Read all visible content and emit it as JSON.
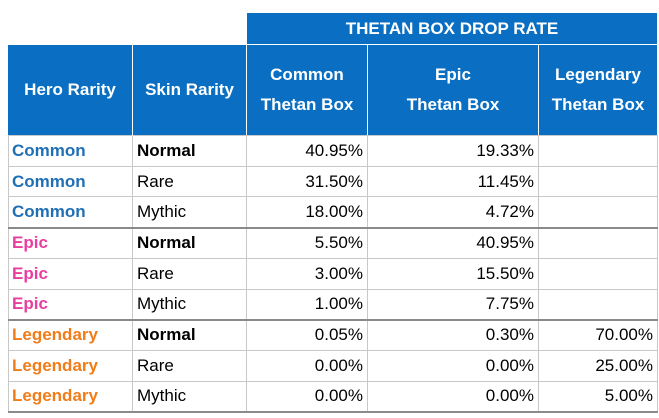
{
  "table": {
    "group_header": "THETAN BOX DROP RATE",
    "column_headers": {
      "hero_rarity": "Hero Rarity",
      "skin_rarity": "Skin Rarity",
      "common_box_line1": "Common",
      "common_box_line2": "Thetan Box",
      "epic_box_line1": "Epic",
      "epic_box_line2": "Thetan Box",
      "legendary_box_line1": "Legendary",
      "legendary_box_line2": "Thetan Box"
    },
    "rows": [
      {
        "hero": "Common",
        "skin": "Normal",
        "common": "40.95%",
        "epic": "19.33%",
        "legendary": ""
      },
      {
        "hero": "Common",
        "skin": "Rare",
        "common": "31.50%",
        "epic": "11.45%",
        "legendary": ""
      },
      {
        "hero": "Common",
        "skin": "Mythic",
        "common": "18.00%",
        "epic": "4.72%",
        "legendary": ""
      },
      {
        "hero": "Epic",
        "skin": "Normal",
        "common": "5.50%",
        "epic": "40.95%",
        "legendary": ""
      },
      {
        "hero": "Epic",
        "skin": "Rare",
        "common": "3.00%",
        "epic": "15.50%",
        "legendary": ""
      },
      {
        "hero": "Epic",
        "skin": "Mythic",
        "common": "1.00%",
        "epic": "7.75%",
        "legendary": ""
      },
      {
        "hero": "Legendary",
        "skin": "Normal",
        "common": "0.05%",
        "epic": "0.30%",
        "legendary": "70.00%"
      },
      {
        "hero": "Legendary",
        "skin": "Rare",
        "common": "0.00%",
        "epic": "0.00%",
        "legendary": "25.00%"
      },
      {
        "hero": "Legendary",
        "skin": "Mythic",
        "common": "0.00%",
        "epic": "0.00%",
        "legendary": "5.00%"
      }
    ]
  },
  "colors": {
    "header_bg": "#0a6fc2",
    "header_text": "#ffffff",
    "common_hero": "#1f6fb5",
    "epic_hero": "#e83e9f",
    "legendary_hero": "#f07d1a"
  }
}
